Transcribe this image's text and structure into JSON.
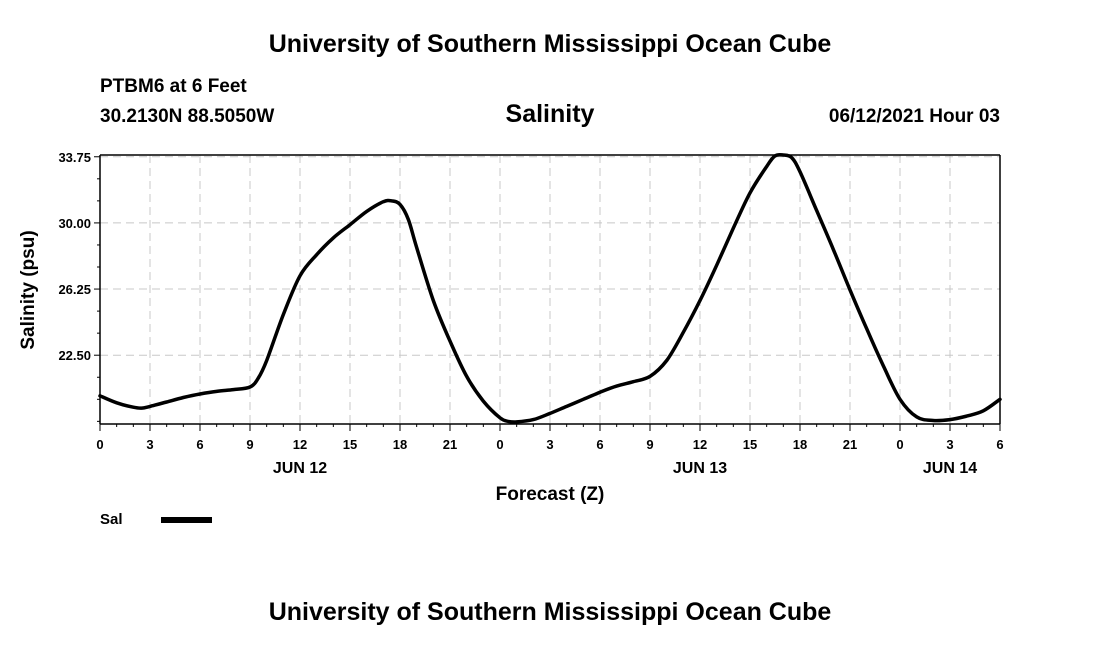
{
  "header": {
    "title": "University of Southern Mississippi Ocean Cube",
    "station": "PTBM6 at 6 Feet",
    "coordinates": "30.2130N  88.5050W",
    "chart_title": "Salinity",
    "datetime": "06/12/2021 Hour 03"
  },
  "footer": {
    "title": "University of Southern Mississippi Ocean Cube"
  },
  "chart_data": {
    "type": "line",
    "title": "Salinity",
    "xlabel": "Forecast (Z)",
    "ylabel": "Salinity (psu)",
    "xlim": [
      0,
      54
    ],
    "ylim": [
      18.6,
      33.85
    ],
    "grid": true,
    "y_ticks": [
      22.5,
      26.25,
      30.0,
      33.75
    ],
    "y_tick_labels": [
      "22.50",
      "26.25",
      "30.00",
      "33.75"
    ],
    "x_ticks": [
      0,
      3,
      6,
      9,
      12,
      15,
      18,
      21,
      24,
      27,
      30,
      33,
      36,
      39,
      42,
      45,
      48,
      51,
      54
    ],
    "x_tick_labels": [
      "0",
      "3",
      "6",
      "9",
      "12",
      "15",
      "18",
      "21",
      "0",
      "3",
      "6",
      "9",
      "12",
      "15",
      "18",
      "21",
      "0",
      "3",
      "6"
    ],
    "day_labels": [
      {
        "hour": 12,
        "label": "JUN 12"
      },
      {
        "hour": 36,
        "label": "JUN 13"
      },
      {
        "hour": 51,
        "label": "JUN 14"
      }
    ],
    "legend": {
      "label": "Sal",
      "position": "bottom-left"
    },
    "series": [
      {
        "name": "Sal",
        "x": [
          0,
          1,
          2,
          2.5,
          3,
          4,
          5,
          6,
          7,
          8,
          9,
          9.5,
          10,
          11,
          12,
          13,
          14,
          15,
          16,
          17,
          17.5,
          18,
          18.5,
          19,
          20,
          21,
          22,
          23,
          24,
          24.5,
          25,
          26,
          27,
          28,
          29,
          30,
          31,
          32,
          33,
          34,
          35,
          36,
          37,
          38,
          39,
          40,
          40.5,
          41,
          41.5,
          42,
          43,
          44,
          45,
          46,
          47,
          48,
          49,
          50,
          51,
          52,
          53,
          54
        ],
        "values": [
          20.2,
          19.8,
          19.55,
          19.5,
          19.6,
          19.85,
          20.1,
          20.3,
          20.45,
          20.55,
          20.7,
          21.2,
          22.2,
          24.8,
          27.0,
          28.2,
          29.15,
          29.9,
          30.65,
          31.2,
          31.25,
          31.05,
          30.2,
          28.6,
          25.6,
          23.3,
          21.3,
          19.9,
          18.95,
          18.75,
          18.72,
          18.85,
          19.2,
          19.6,
          20.0,
          20.4,
          20.75,
          21.0,
          21.3,
          22.2,
          23.8,
          25.6,
          27.6,
          29.7,
          31.7,
          33.2,
          33.8,
          33.85,
          33.7,
          32.9,
          30.7,
          28.5,
          26.2,
          24.0,
          21.9,
          20.0,
          19.0,
          18.8,
          18.85,
          19.05,
          19.35,
          20.0
        ]
      }
    ]
  }
}
